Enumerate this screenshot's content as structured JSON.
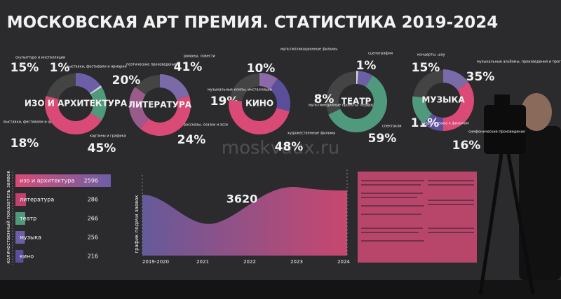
{
  "header": {
    "title": "МОСКОВСКАЯ АРТ ПРЕМИЯ. СТАТИСТИКА 2019-2024"
  },
  "watermark": "moskvaux.ru",
  "donuts": [
    {
      "name": "ИЗО И АРХИТЕКТУРА",
      "segments": [
        {
          "label": "скульптура и инсталляции",
          "value": 15,
          "text": "15%",
          "color": "#6c5fa6"
        },
        {
          "label": "выставки, фестивали и ярмарки",
          "value": 1,
          "text": "1%",
          "color": "#d9d9d9"
        },
        {
          "label": "выставки, фестивали и ярмарки",
          "value": 18,
          "text": "18%",
          "color": "#4f9a7c"
        },
        {
          "label": "картины и графика",
          "value": 45,
          "text": "45%",
          "color": "#d94a76"
        }
      ]
    },
    {
      "name": "ЛИТЕРАТУРА",
      "segments": [
        {
          "label": "поэтические произведения",
          "value": 20,
          "text": "20%",
          "color": "#7a6aa8"
        },
        {
          "label": "романы, повести",
          "value": 41,
          "text": "41%",
          "color": "#d94a76"
        },
        {
          "label": "рассказы, сказки и эссе",
          "value": 24,
          "text": "24%",
          "color": "#9a5a8a"
        }
      ]
    },
    {
      "name": "КИНО",
      "segments": [
        {
          "label": "мультипликационные фильмы",
          "value": 10,
          "text": "10%",
          "color": "#8a6aa8"
        },
        {
          "label": "музыкальные клипы, инсталляции",
          "value": 19,
          "text": "19%",
          "color": "#5a4f9a"
        },
        {
          "label": "художественные фильмы",
          "value": 48,
          "text": "48%",
          "color": "#d94a76"
        }
      ]
    },
    {
      "name": "ТЕАТР",
      "segments": [
        {
          "label": "сценография",
          "value": 1,
          "text": "1%",
          "color": "#d9d9d9"
        },
        {
          "label": "мультимедийные проекты, перформансы",
          "value": 8,
          "text": "8%",
          "color": "#6c5fa6"
        },
        {
          "label": "спектакли",
          "value": 59,
          "text": "59%",
          "color": "#4f9a7c"
        }
      ]
    },
    {
      "name": "МУЗЫКА",
      "segments": [
        {
          "label": "концерты, шоу",
          "value": 15,
          "text": "15%",
          "color": "#7a6aa8"
        },
        {
          "label": "музыкальные альбомы, произведения и программы",
          "value": 35,
          "text": "35%",
          "color": "#d94a76"
        },
        {
          "label": "опера, музыка к фильмам",
          "value": 11,
          "text": "11%",
          "color": "#5a4f9a"
        },
        {
          "label": "симфонические произведения",
          "value": 16,
          "text": "16%",
          "color": "#4f9a7c"
        }
      ]
    }
  ],
  "ranking": {
    "axis_label": "количественный показатель заявок",
    "rows": [
      {
        "name": "изо и архитектура",
        "value": 2596,
        "color": "#d94a76"
      },
      {
        "name": "литература",
        "value": 286,
        "color": "#c04070"
      },
      {
        "name": "театр",
        "value": 266,
        "color": "#4f9a7c"
      },
      {
        "name": "музыка",
        "value": 256,
        "color": "#6c5fa6"
      },
      {
        "name": "кино",
        "value": 216,
        "color": "#5a4f9a"
      }
    ]
  },
  "timeline": {
    "title": "график подачи заявок",
    "peak": "3620",
    "x": [
      "2019-2020",
      "2021",
      "2022",
      "2023",
      "2024"
    ]
  }
}
